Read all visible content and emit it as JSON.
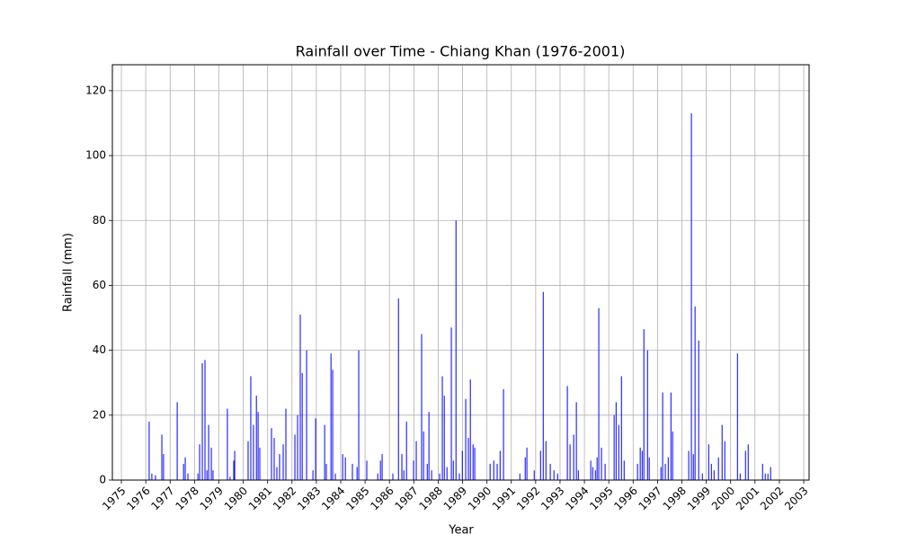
{
  "chart_data": {
    "type": "bar",
    "title": "Rainfall over Time - Chiang Khan (1976-2001)",
    "x_label": "Year",
    "y_label": "Rainfall (mm)",
    "color": "#0000ff",
    "grid": true,
    "xlim": [
      1974.63,
      2003.22
    ],
    "ylim": [
      0,
      128
    ],
    "xticks": [
      1975,
      1976,
      1977,
      1978,
      1979,
      1980,
      1981,
      1982,
      1983,
      1984,
      1985,
      1986,
      1987,
      1988,
      1989,
      1990,
      1991,
      1992,
      1993,
      1994,
      1995,
      1996,
      1997,
      1998,
      1999,
      2000,
      2001,
      2002,
      2003
    ],
    "yticks": [
      0,
      20,
      40,
      60,
      80,
      100,
      120
    ],
    "x": [
      1976.14,
      1976.25,
      1976.4,
      1976.66,
      1976.73,
      1977.29,
      1977.55,
      1977.62,
      1977.73,
      1978.14,
      1978.21,
      1978.32,
      1978.43,
      1978.51,
      1978.58,
      1978.69,
      1978.76,
      1979.35,
      1979.46,
      1979.61,
      1979.65,
      1980.2,
      1980.31,
      1980.42,
      1980.54,
      1980.61,
      1980.68,
      1981.16,
      1981.27,
      1981.38,
      1981.49,
      1981.64,
      1981.75,
      1982.12,
      1982.23,
      1982.34,
      1982.42,
      1982.6,
      1982.86,
      1982.97,
      1983.34,
      1983.41,
      1983.6,
      1983.67,
      1983.78,
      1984.08,
      1984.19,
      1984.48,
      1984.67,
      1984.74,
      1985.07,
      1985.52,
      1985.63,
      1985.7,
      1986.14,
      1986.37,
      1986.51,
      1986.59,
      1986.7,
      1986.99,
      1987.1,
      1987.32,
      1987.4,
      1987.55,
      1987.62,
      1987.73,
      1988.06,
      1988.17,
      1988.25,
      1988.36,
      1988.54,
      1988.62,
      1988.73,
      1988.87,
      1988.99,
      1989.13,
      1989.24,
      1989.32,
      1989.43,
      1989.5,
      1990.13,
      1990.28,
      1990.42,
      1990.54,
      1990.68,
      1991.35,
      1991.57,
      1991.64,
      1991.94,
      1992.2,
      1992.31,
      1992.42,
      1992.6,
      1992.75,
      1992.9,
      1993.3,
      1993.41,
      1993.56,
      1993.67,
      1993.75,
      1994.26,
      1994.34,
      1994.45,
      1994.52,
      1994.59,
      1994.7,
      1994.85,
      1995.22,
      1995.3,
      1995.41,
      1995.52,
      1995.63,
      1996.18,
      1996.29,
      1996.37,
      1996.44,
      1996.59,
      1996.66,
      1997.14,
      1997.21,
      1997.32,
      1997.44,
      1997.55,
      1997.62,
      1998.28,
      1998.39,
      1998.47,
      1998.54,
      1998.69,
      1998.84,
      1999.1,
      1999.21,
      1999.32,
      1999.5,
      1999.65,
      1999.76,
      2000.28,
      2000.39,
      2000.61,
      2000.72,
      2001.31,
      2001.42,
      2001.53,
      2001.64
    ],
    "values": [
      18,
      2,
      1.5,
      14,
      8,
      24,
      5,
      7,
      2,
      2,
      11,
      36,
      37,
      3,
      17,
      10,
      3,
      22,
      1,
      6,
      9,
      12,
      32,
      17,
      26,
      21,
      10,
      16,
      13,
      4,
      8,
      11,
      22,
      14,
      20,
      51,
      33,
      40,
      3,
      19,
      17,
      5,
      39,
      34,
      2,
      8,
      7,
      5,
      4,
      40,
      6,
      2,
      6,
      8,
      2,
      56,
      8,
      3,
      18,
      6,
      12,
      45,
      15,
      5,
      21,
      3,
      2,
      32,
      26,
      4,
      47,
      6,
      80,
      2,
      9,
      25,
      13,
      31,
      11,
      10,
      5,
      6,
      5,
      9,
      28,
      2,
      7,
      10,
      3,
      9,
      58,
      12,
      5,
      3,
      2,
      29,
      11,
      14,
      24,
      3,
      6,
      4,
      3,
      7,
      53,
      10,
      5,
      20,
      24,
      17,
      32,
      6,
      5,
      10,
      9,
      46.5,
      40,
      7,
      4,
      27,
      5,
      7,
      27,
      15,
      9,
      113,
      8,
      53.5,
      43,
      2,
      11,
      5,
      3,
      7,
      17,
      12,
      39,
      2,
      9,
      11,
      5,
      2,
      2,
      4
    ]
  }
}
